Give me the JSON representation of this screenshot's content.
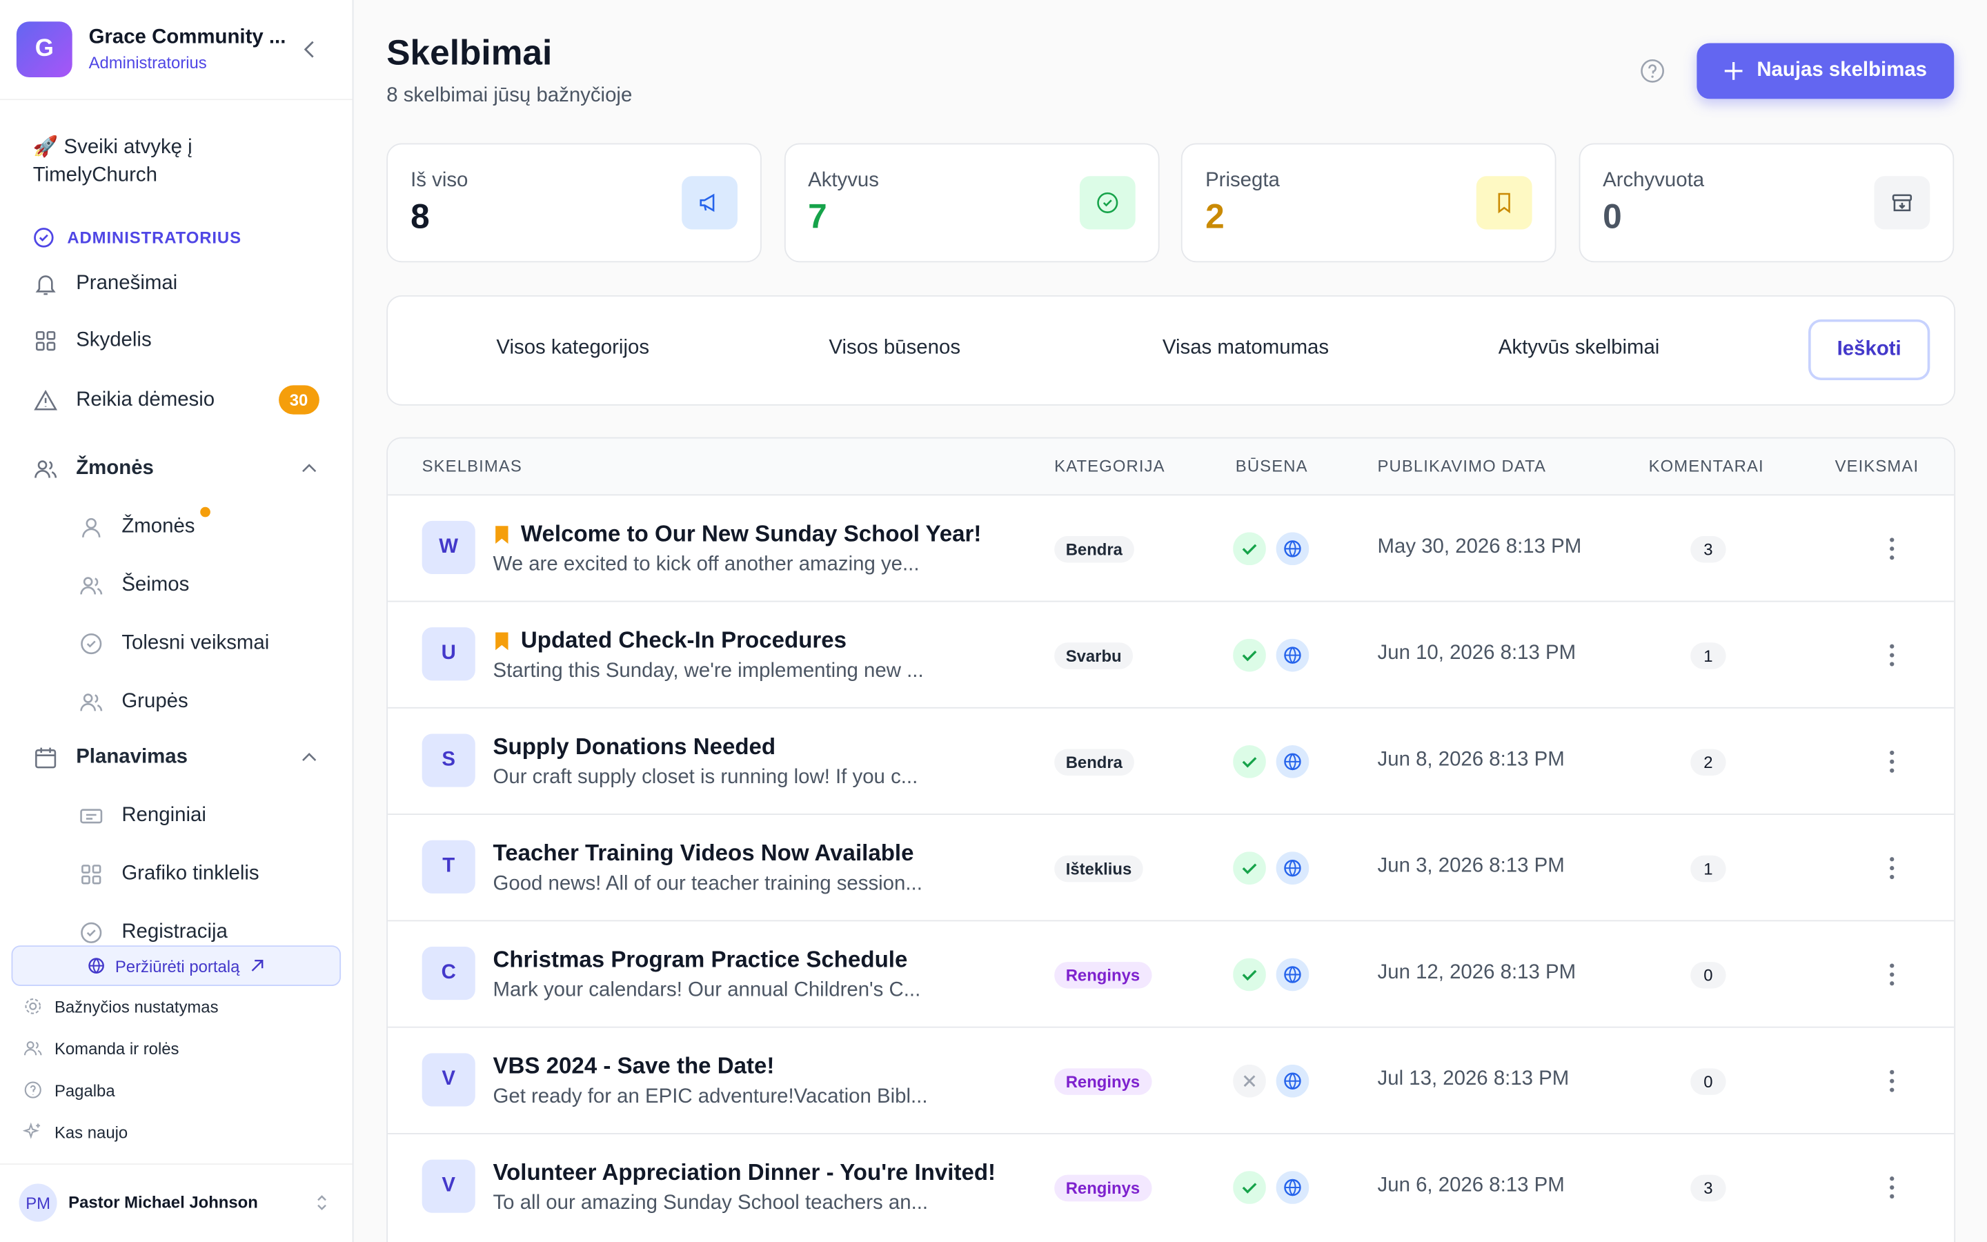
{
  "sidebar": {
    "org_initial": "G",
    "org_name": "Grace Community ...",
    "role": "Administratorius",
    "welcome": "Sveiki atvykę į TimelyChurch",
    "section": "ADMINISTRATORIUS",
    "nav": [
      {
        "label": "Pranešimai",
        "icon": "bell"
      },
      {
        "label": "Skydelis",
        "icon": "grid"
      },
      {
        "label": "Reikia dėmesio",
        "icon": "warn",
        "badge": "30"
      }
    ],
    "groups": [
      {
        "label": "Žmonės",
        "icon": "people",
        "items": [
          {
            "label": "Žmonės",
            "icon": "user",
            "dot": true
          },
          {
            "label": "Šeimos",
            "icon": "people"
          },
          {
            "label": "Tolesni veiksmai",
            "icon": "check"
          },
          {
            "label": "Grupės",
            "icon": "people"
          }
        ]
      },
      {
        "label": "Planavimas",
        "icon": "cal",
        "items": [
          {
            "label": "Renginiai",
            "icon": "ticket"
          },
          {
            "label": "Grafiko tinklelis",
            "icon": "grid"
          },
          {
            "label": "Registracija",
            "icon": "check"
          }
        ]
      }
    ],
    "portal": "Peržiūrėti portalą",
    "links": [
      "Bažnyčios nustatymas",
      "Komanda ir rolės",
      "Pagalba",
      "Kas naujo"
    ],
    "user_initials": "PM",
    "user_name": "Pastor Michael Johnson"
  },
  "header": {
    "title": "Skelbimai",
    "subtitle": "8 skelbimai jūsų bažnyčioje",
    "button": "Naujas skelbimas"
  },
  "stats": [
    {
      "label": "Iš viso",
      "value": "8",
      "color": "#111827",
      "icon_bg": "#dbeafe",
      "icon_color": "#2563eb"
    },
    {
      "label": "Aktyvus",
      "value": "7",
      "color": "#16a34a",
      "icon_bg": "#dcfce7",
      "icon_color": "#16a34a"
    },
    {
      "label": "Prisegta",
      "value": "2",
      "color": "#ca8a04",
      "icon_bg": "#fef9c3",
      "icon_color": "#ca8a04"
    },
    {
      "label": "Archyvuota",
      "value": "0",
      "color": "#4b5563",
      "icon_bg": "#f3f4f6",
      "icon_color": "#4b5563"
    }
  ],
  "filters": [
    "Visos kategorijos",
    "Visos būsenos",
    "Visas matomumas",
    "Aktyvūs skelbimai"
  ],
  "search": "Ieškoti",
  "table": {
    "columns": [
      "SKELBIMAS",
      "KATEGORIJA",
      "BŪSENA",
      "PUBLIKAVIMO DATA",
      "KOMENTARAI",
      "VEIKSMAI"
    ],
    "rows": [
      {
        "initial": "W",
        "pinned": true,
        "title": "Welcome to Our New Sunday School Year!",
        "excerpt": "We are excited to kick off another amazing ye...",
        "category": "Bendra",
        "category_color": "#f3f4f6",
        "category_text": "#1f2937",
        "active": true,
        "date": "May 30, 2026 8:13 PM",
        "comments": "3"
      },
      {
        "initial": "U",
        "pinned": true,
        "title": "Updated Check-In Procedures",
        "excerpt": "Starting this Sunday, we're implementing new ...",
        "category": "Svarbu",
        "category_color": "#f3f4f6",
        "category_text": "#1f2937",
        "active": true,
        "date": "Jun 10, 2026 8:13 PM",
        "comments": "1"
      },
      {
        "initial": "S",
        "pinned": false,
        "title": "Supply Donations Needed",
        "excerpt": "Our craft supply closet is running low! If you c...",
        "category": "Bendra",
        "category_color": "#f3f4f6",
        "category_text": "#1f2937",
        "active": true,
        "date": "Jun 8, 2026 8:13 PM",
        "comments": "2"
      },
      {
        "initial": "T",
        "pinned": false,
        "title": "Teacher Training Videos Now Available",
        "excerpt": "Good news! All of our teacher training session...",
        "category": "Išteklius",
        "category_color": "#f3f4f6",
        "category_text": "#1f2937",
        "active": true,
        "date": "Jun 3, 2026 8:13 PM",
        "comments": "1"
      },
      {
        "initial": "C",
        "pinned": false,
        "title": "Christmas Program Practice Schedule",
        "excerpt": "Mark your calendars! Our annual Children's C...",
        "category": "Renginys",
        "category_color": "#f3e8ff",
        "category_text": "#7e22ce",
        "active": true,
        "date": "Jun 12, 2026 8:13 PM",
        "comments": "0"
      },
      {
        "initial": "V",
        "pinned": false,
        "title": "VBS 2024 - Save the Date!",
        "excerpt": "Get ready for an EPIC adventure!Vacation Bibl...",
        "category": "Renginys",
        "category_color": "#f3e8ff",
        "category_text": "#7e22ce",
        "active": false,
        "date": "Jul 13, 2026 8:13 PM",
        "comments": "0"
      },
      {
        "initial": "V",
        "pinned": false,
        "title": "Volunteer Appreciation Dinner - You're Invited!",
        "excerpt": "To all our amazing Sunday School teachers an...",
        "category": "Renginys",
        "category_color": "#f3e8ff",
        "category_text": "#7e22ce",
        "active": true,
        "date": "Jun 6, 2026 8:13 PM",
        "comments": "3"
      }
    ]
  }
}
